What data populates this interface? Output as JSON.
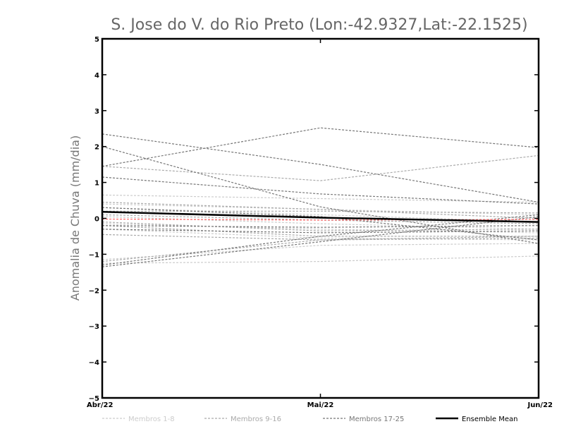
{
  "chart_data": {
    "type": "line",
    "title": "S. Jose do V. do Rio Preto (Lon:-42.9327,Lat:-22.1525)",
    "xlabel": "",
    "ylabel": "Anomalia de Chuva (mm/dia)",
    "categories": [
      "Abr/22",
      "Mai/22",
      "Jun/22"
    ],
    "ylim": [
      -5,
      5
    ],
    "yticks": [
      "5",
      "4",
      "3",
      "2",
      "1",
      "0",
      "−1",
      "−2",
      "−3",
      "−4",
      "−5"
    ],
    "legend_position": "bottom",
    "legend": [
      {
        "label": "Membros 1-8",
        "color": "#cccccc",
        "style": "dashed"
      },
      {
        "label": "Membros 9-16",
        "color": "#aaaaaa",
        "style": "dashed"
      },
      {
        "label": "Membros 17-25",
        "color": "#777777",
        "style": "dashed"
      },
      {
        "label": "Ensemble Mean",
        "color": "#000000",
        "style": "solid"
      }
    ],
    "series": [
      {
        "group": 1,
        "color": "#cccccc",
        "values": [
          0.65,
          0.55,
          0.45
        ]
      },
      {
        "group": 1,
        "color": "#cccccc",
        "values": [
          0.4,
          0.25,
          0.1
        ]
      },
      {
        "group": 1,
        "color": "#cccccc",
        "values": [
          0.3,
          0.1,
          -0.1
        ]
      },
      {
        "group": 1,
        "color": "#cccccc",
        "values": [
          0.05,
          -0.15,
          -0.3
        ]
      },
      {
        "group": 1,
        "color": "#cccccc",
        "values": [
          -0.15,
          -0.3,
          -0.4
        ]
      },
      {
        "group": 1,
        "color": "#cccccc",
        "values": [
          -0.3,
          -0.55,
          -0.6
        ]
      },
      {
        "group": 1,
        "color": "#cccccc",
        "values": [
          -1.25,
          -1.2,
          -1.05
        ]
      },
      {
        "group": 1,
        "color": "#cccccc",
        "values": [
          -1.15,
          -0.75,
          -0.7
        ]
      },
      {
        "group": 2,
        "color": "#aaaaaa",
        "values": [
          1.45,
          1.05,
          1.75
        ]
      },
      {
        "group": 2,
        "color": "#aaaaaa",
        "values": [
          0.2,
          0.2,
          0.15
        ]
      },
      {
        "group": 2,
        "color": "#aaaaaa",
        "values": [
          0.1,
          -0.05,
          -0.15
        ]
      },
      {
        "group": 2,
        "color": "#aaaaaa",
        "values": [
          -0.1,
          -0.35,
          -0.3
        ]
      },
      {
        "group": 2,
        "color": "#aaaaaa",
        "values": [
          -0.2,
          -0.5,
          -0.5
        ]
      },
      {
        "group": 2,
        "color": "#aaaaaa",
        "values": [
          -0.45,
          -0.6,
          -0.55
        ]
      },
      {
        "group": 2,
        "color": "#aaaaaa",
        "values": [
          -1.2,
          -0.6,
          -0.5
        ]
      },
      {
        "group": 2,
        "color": "#aaaaaa",
        "values": [
          0.45,
          0.25,
          0.0
        ]
      },
      {
        "group": 3,
        "color": "#777777",
        "values": [
          2.35,
          1.5,
          0.45
        ]
      },
      {
        "group": 3,
        "color": "#777777",
        "values": [
          1.45,
          2.52,
          1.97
        ]
      },
      {
        "group": 3,
        "color": "#777777",
        "values": [
          1.15,
          0.68,
          0.4
        ]
      },
      {
        "group": 3,
        "color": "#777777",
        "values": [
          2.0,
          0.32,
          -0.7
        ]
      },
      {
        "group": 3,
        "color": "#777777",
        "values": [
          0.3,
          0.05,
          -0.6
        ]
      },
      {
        "group": 3,
        "color": "#777777",
        "values": [
          -0.2,
          -0.25,
          -0.2
        ]
      },
      {
        "group": 3,
        "color": "#777777",
        "values": [
          -0.3,
          -0.4,
          -0.35
        ]
      },
      {
        "group": 3,
        "color": "#777777",
        "values": [
          -1.3,
          -0.5,
          0.1
        ]
      },
      {
        "group": 3,
        "color": "#777777",
        "values": [
          -1.35,
          -0.65,
          0.05
        ]
      },
      {
        "group": 0,
        "color": "#ff6666",
        "values": [
          -0.02,
          -0.05,
          -0.03
        ]
      },
      {
        "group": 0,
        "color": "#000000",
        "mean": true,
        "values": [
          0.18,
          0.02,
          -0.1
        ]
      }
    ]
  }
}
